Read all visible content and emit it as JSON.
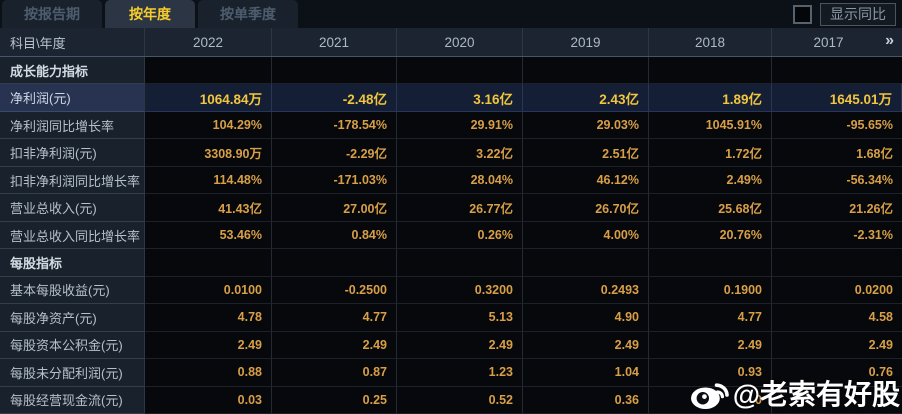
{
  "tabs": [
    {
      "label": "按报告期",
      "active": false
    },
    {
      "label": "按年度",
      "active": true
    },
    {
      "label": "按单季度",
      "active": false
    }
  ],
  "controls": {
    "show_yoy_label": "显示同比",
    "checkbox_checked": false
  },
  "table": {
    "corner_label": "科目\\年度",
    "years": [
      "2022",
      "2021",
      "2020",
      "2019",
      "2018",
      "2017"
    ],
    "more_icon": "»",
    "rows": [
      {
        "type": "section",
        "label": "成长能力指标",
        "values": [
          "",
          "",
          "",
          "",
          "",
          ""
        ]
      },
      {
        "type": "highlight",
        "label": "净利润(元)",
        "values": [
          "1064.84万",
          "-2.48亿",
          "3.16亿",
          "2.43亿",
          "1.89亿",
          "1645.01万"
        ]
      },
      {
        "type": "data",
        "label": "净利润同比增长率",
        "values": [
          "104.29%",
          "-178.54%",
          "29.91%",
          "29.03%",
          "1045.91%",
          "-95.65%"
        ]
      },
      {
        "type": "data",
        "label": "扣非净利润(元)",
        "values": [
          "3308.90万",
          "-2.29亿",
          "3.22亿",
          "2.51亿",
          "1.72亿",
          "1.68亿"
        ]
      },
      {
        "type": "data",
        "label": "扣非净利润同比增长率",
        "values": [
          "114.48%",
          "-171.03%",
          "28.04%",
          "46.12%",
          "2.49%",
          "-56.34%"
        ]
      },
      {
        "type": "data",
        "label": "营业总收入(元)",
        "values": [
          "41.43亿",
          "27.00亿",
          "26.77亿",
          "26.70亿",
          "25.68亿",
          "21.26亿"
        ]
      },
      {
        "type": "data",
        "label": "营业总收入同比增长率",
        "values": [
          "53.46%",
          "0.84%",
          "0.26%",
          "4.00%",
          "20.76%",
          "-2.31%"
        ]
      },
      {
        "type": "section",
        "label": "每股指标",
        "values": [
          "",
          "",
          "",
          "",
          "",
          ""
        ]
      },
      {
        "type": "data",
        "label": "基本每股收益(元)",
        "values": [
          "0.0100",
          "-0.2500",
          "0.3200",
          "0.2493",
          "0.1900",
          "0.0200"
        ]
      },
      {
        "type": "data",
        "label": "每股净资产(元)",
        "values": [
          "4.78",
          "4.77",
          "5.13",
          "4.90",
          "4.77",
          "4.58"
        ]
      },
      {
        "type": "data",
        "label": "每股资本公积金(元)",
        "values": [
          "2.49",
          "2.49",
          "2.49",
          "2.49",
          "2.49",
          "2.49"
        ]
      },
      {
        "type": "data",
        "label": "每股未分配利润(元)",
        "values": [
          "0.88",
          "0.87",
          "1.23",
          "1.04",
          "0.93",
          "0.76"
        ]
      },
      {
        "type": "data",
        "label": "每股经营现金流(元)",
        "values": [
          "0.03",
          "0.25",
          "0.52",
          "0.36",
          "0",
          ""
        ]
      }
    ]
  },
  "watermark": {
    "icon": "weibo-icon",
    "text": "@老索有好股"
  },
  "colors": {
    "active_tab_text": "#f7cd2e",
    "value_text": "#d89f47",
    "highlight_value_text": "#f2c53e",
    "header_bg": "#1b2430",
    "highlight_row_bg": "#141f36",
    "label_col_bg": "#18212c",
    "cell_bg": "#06080b"
  }
}
